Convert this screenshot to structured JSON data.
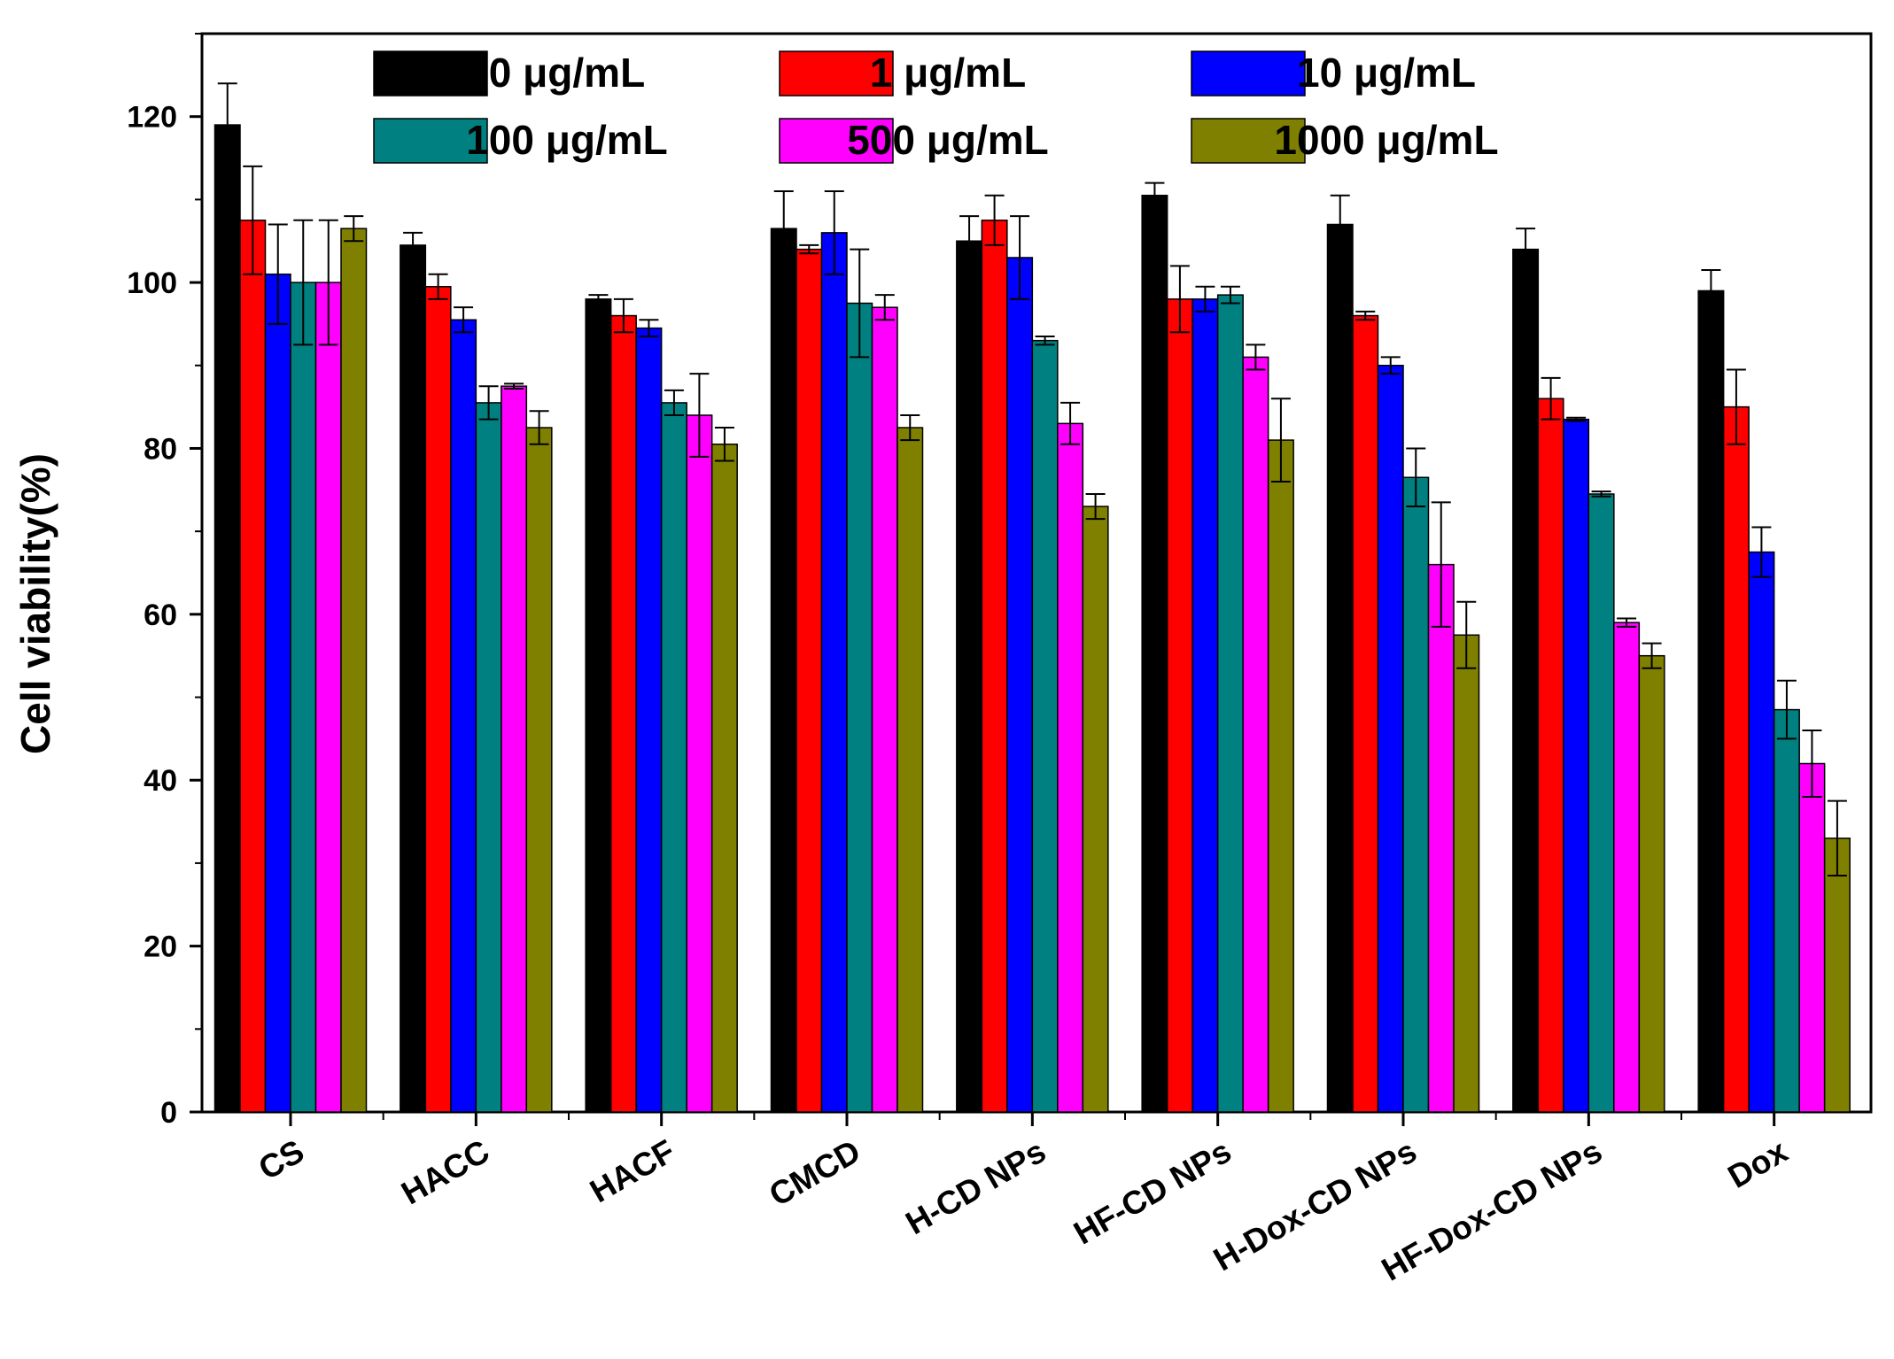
{
  "chart_data": {
    "type": "bar",
    "title": "",
    "xlabel": "",
    "ylabel": "Cell viability(%)",
    "ylim": [
      0,
      130
    ],
    "yticks": [
      0,
      20,
      40,
      60,
      80,
      100,
      120
    ],
    "legend_position": "top-center",
    "categories": [
      "CS",
      "HACC",
      "HACF",
      "CMCD",
      "H-CD NPs",
      "HF-CD NPs",
      "H-Dox-CD NPs",
      "HF-Dox-CD NPs",
      "Dox"
    ],
    "series": [
      {
        "name": "0 μg/mL",
        "color": "#000000",
        "values": [
          119,
          104.5,
          98,
          106.5,
          105,
          110.5,
          107,
          104,
          99
        ],
        "errors": [
          5,
          1.5,
          0.5,
          4.5,
          3,
          1.5,
          3.5,
          2.5,
          2.5
        ]
      },
      {
        "name": "1 μg/mL",
        "color": "#ff0000",
        "values": [
          107.5,
          99.5,
          96,
          104,
          107.5,
          98,
          96,
          86,
          85
        ],
        "errors": [
          6.5,
          1.5,
          2,
          0.5,
          3,
          4,
          0.5,
          2.5,
          4.5
        ]
      },
      {
        "name": "10 μg/mL",
        "color": "#0000ff",
        "values": [
          101,
          95.5,
          94.5,
          106,
          103,
          98,
          90,
          83.5,
          67.5
        ],
        "errors": [
          6,
          1.5,
          1,
          5,
          5,
          1.5,
          1,
          0.2,
          3
        ]
      },
      {
        "name": "100 μg/mL",
        "color": "#008080",
        "values": [
          100,
          85.5,
          85.5,
          97.5,
          93,
          98.5,
          76.5,
          74.5,
          48.5
        ],
        "errors": [
          7.5,
          2,
          1.5,
          6.5,
          0.5,
          1,
          3.5,
          0.3,
          3.5
        ]
      },
      {
        "name": "500 μg/mL",
        "color": "#ff00ff",
        "values": [
          100,
          87.5,
          84,
          97,
          83,
          91,
          66,
          59,
          42
        ],
        "errors": [
          7.5,
          0.3,
          5,
          1.5,
          2.5,
          1.5,
          7.5,
          0.5,
          4
        ]
      },
      {
        "name": "1000 μg/mL",
        "color": "#808000",
        "values": [
          106.5,
          82.5,
          80.5,
          82.5,
          73,
          81,
          57.5,
          55,
          33
        ],
        "errors": [
          1.5,
          2,
          2,
          1.5,
          1.5,
          5,
          4,
          1.5,
          4.5
        ]
      }
    ]
  }
}
